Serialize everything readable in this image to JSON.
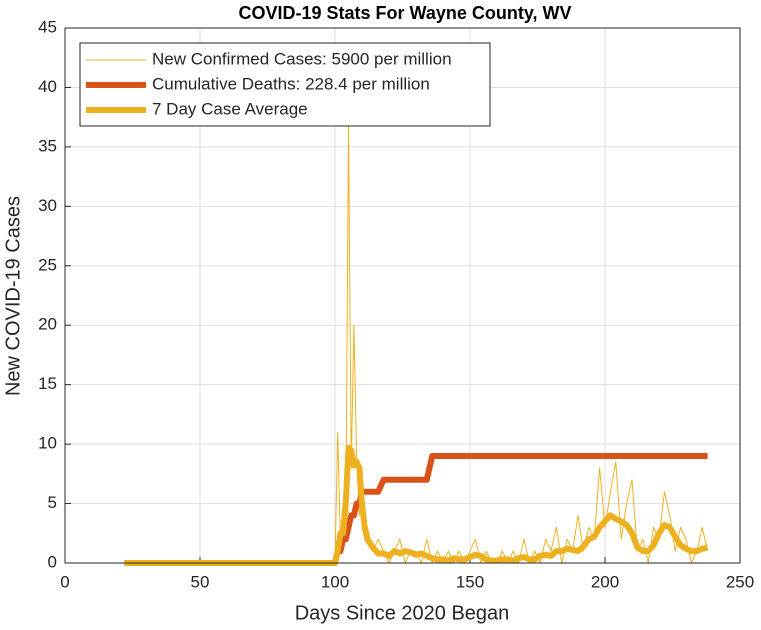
{
  "chart_data": {
    "type": "line",
    "title": "COVID-19 Stats For Wayne County, WV",
    "xlabel": "Days Since 2020 Began",
    "ylabel": "New COVID-19 Cases",
    "x": [
      22,
      99,
      100,
      101,
      102,
      103,
      104,
      105,
      106,
      107,
      108,
      109,
      110,
      111,
      112,
      114,
      116,
      118,
      120,
      122,
      124,
      126,
      128,
      130,
      132,
      134,
      136,
      138,
      140,
      142,
      144,
      146,
      148,
      150,
      152,
      154,
      156,
      158,
      160,
      162,
      164,
      166,
      168,
      170,
      172,
      174,
      176,
      178,
      180,
      182,
      184,
      186,
      188,
      190,
      192,
      194,
      196,
      198,
      200,
      202,
      204,
      206,
      208,
      210,
      212,
      214,
      216,
      218,
      220,
      222,
      224,
      226,
      228,
      230,
      232,
      234,
      236,
      238
    ],
    "series": [
      {
        "name": "New Confirmed Cases: 5900 per million",
        "color": "#EDB120",
        "values": [
          0,
          0,
          0,
          11,
          2,
          5,
          3,
          37,
          8,
          20,
          9,
          4,
          8,
          2,
          3,
          1,
          2,
          1,
          0,
          1,
          2,
          0,
          1,
          1,
          0,
          2,
          0,
          1,
          0,
          1,
          0,
          1,
          0,
          1,
          2,
          0,
          1,
          0,
          0,
          1,
          0,
          1,
          0,
          2,
          0,
          1,
          0,
          2,
          1,
          3,
          0,
          2,
          1,
          4,
          1,
          3,
          2,
          8,
          3,
          6,
          8.5,
          2,
          5,
          7,
          1,
          2,
          0,
          3,
          2,
          6,
          4,
          1,
          3,
          2,
          0,
          1,
          3,
          1
        ]
      },
      {
        "name": "Cumulative Deaths: 228.4 per million",
        "color": "#D95319",
        "values": [
          0,
          0,
          0,
          1,
          1,
          2,
          2,
          3,
          4,
          4,
          5,
          5,
          6,
          6,
          6,
          6,
          6,
          7,
          7,
          7,
          7,
          7,
          7,
          7,
          7,
          7,
          9,
          9,
          9,
          9,
          9,
          9,
          9,
          9,
          9,
          9,
          9,
          9,
          9,
          9,
          9,
          9,
          9,
          9,
          9,
          9,
          9,
          9,
          9,
          9,
          9,
          9,
          9,
          9,
          9,
          9,
          9,
          9,
          9,
          9,
          9,
          9,
          9,
          9,
          9,
          9,
          9,
          9,
          9,
          9,
          9,
          9,
          9,
          9,
          9,
          9,
          9,
          9
        ]
      },
      {
        "name": "7 Day Case Average",
        "color": "#EDB120",
        "values": [
          0,
          0,
          0,
          1,
          2.5,
          2.5,
          5,
          9.7,
          9.5,
          8.2,
          8.5,
          8,
          5,
          3,
          2,
          1.3,
          0.8,
          0.8,
          0.6,
          1,
          0.8,
          1,
          0.9,
          0.7,
          0.8,
          0.6,
          0.4,
          0.3,
          0.3,
          0.2,
          0.4,
          0.3,
          0.3,
          0.5,
          0.7,
          0.6,
          0.3,
          0.2,
          0.2,
          0.3,
          0.3,
          0.2,
          0.4,
          0.5,
          0.3,
          0.3,
          0.6,
          0.7,
          0.6,
          1,
          1,
          1.2,
          1.1,
          1,
          1.4,
          2,
          2.2,
          3,
          3.5,
          4,
          3.7,
          3.5,
          3.2,
          2.5,
          1.3,
          1,
          1,
          1.5,
          2.5,
          3.2,
          3,
          2.2,
          1.5,
          1.2,
          1,
          1,
          1.2,
          1.3
        ]
      }
    ],
    "xlim": [
      0,
      250
    ],
    "xticks": [
      0,
      50,
      100,
      150,
      200,
      250
    ],
    "ylim": [
      0,
      45
    ],
    "yticks": [
      0,
      5,
      10,
      15,
      20,
      25,
      30,
      35,
      40,
      45
    ],
    "grid": true,
    "legend": "upper left"
  }
}
